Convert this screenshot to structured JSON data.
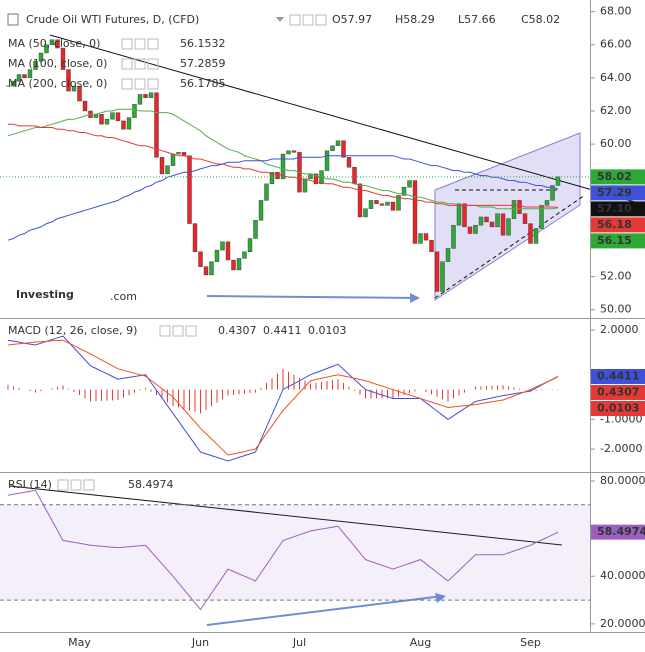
{
  "chart_data": [
    {
      "type": "candlestick",
      "title": "Crude Oil WTI Futures, D, (CFD)",
      "ohlc": [
        "O57.97",
        "H58.29",
        "L57.66",
        "C58.02"
      ],
      "watermark": {
        "brand": "Investing",
        "suffix": ".com"
      },
      "up_color": "#2ea836",
      "down_color": "#e8262a",
      "ylim": [
        49.5,
        68.7
      ],
      "yticks": [
        {
          "value": 50,
          "label": "50.00"
        },
        {
          "value": 52,
          "label": "52.00"
        },
        {
          "value": 54,
          "label": "54.00"
        },
        {
          "value": 56,
          "label": "56.00"
        },
        {
          "value": 58,
          "label": "58.00"
        },
        {
          "value": 60,
          "label": "60.00"
        },
        {
          "value": 62,
          "label": "62.00"
        },
        {
          "value": 64,
          "label": "64.00"
        },
        {
          "value": 66,
          "label": "66.00"
        },
        {
          "value": 68,
          "label": "68.00"
        }
      ],
      "categories": [
        null,
        null,
        null,
        null,
        null,
        null,
        null,
        null,
        null,
        null,
        null,
        null,
        null,
        "May",
        null,
        null,
        null,
        null,
        null,
        null,
        null,
        null,
        null,
        null,
        null,
        null,
        null,
        null,
        null,
        null,
        null,
        null,
        null,
        null,
        null,
        "Jun",
        null,
        null,
        null,
        null,
        null,
        null,
        null,
        null,
        null,
        null,
        null,
        null,
        null,
        null,
        null,
        null,
        null,
        "Jul",
        null,
        null,
        null,
        null,
        null,
        null,
        null,
        null,
        null,
        null,
        null,
        null,
        null,
        null,
        null,
        null,
        null,
        null,
        null,
        null,
        null,
        "Aug",
        null,
        null,
        null,
        null,
        null,
        null,
        null,
        null,
        null,
        null,
        null,
        null,
        null,
        null,
        null,
        null,
        null,
        null,
        null,
        "Sep",
        null,
        null,
        null,
        null,
        null
      ],
      "values": [
        63.5,
        63.8,
        64.2,
        64.0,
        64.5,
        65.0,
        65.5,
        66.0,
        66.3,
        65.8,
        64.5,
        63.2,
        63.5,
        62.6,
        62.0,
        61.6,
        61.8,
        61.2,
        61.5,
        61.9,
        61.4,
        60.9,
        61.6,
        62.4,
        63.0,
        62.8,
        63.1,
        59.2,
        58.2,
        58.7,
        59.4,
        59.5,
        59.3,
        55.2,
        53.5,
        52.6,
        52.1,
        52.9,
        53.6,
        54.1,
        53.0,
        52.4,
        53.1,
        53.5,
        54.3,
        55.4,
        56.6,
        57.6,
        58.3,
        57.9,
        59.4,
        59.6,
        59.5,
        57.1,
        57.9,
        58.2,
        57.6,
        58.4,
        59.6,
        59.9,
        60.2,
        59.2,
        58.6,
        57.6,
        55.6,
        56.1,
        56.6,
        56.4,
        56.3,
        56.5,
        56.0,
        56.9,
        57.4,
        57.8,
        54.0,
        54.6,
        54.2,
        53.5,
        51.1,
        52.9,
        53.7,
        55.1,
        56.4,
        55.0,
        54.6,
        55.1,
        55.6,
        55.3,
        55.0,
        55.8,
        54.5,
        55.5,
        56.6,
        55.8,
        55.2,
        54.0,
        54.9,
        56.3,
        56.6,
        57.5,
        58.02
      ],
      "series": [
        {
          "name": "MA (50, close, 0)",
          "color": "#4caf50",
          "last_value": 56.1532,
          "values": [
            60.5,
            60.6,
            60.7,
            60.8,
            60.9,
            61.0,
            61.0,
            61.1,
            61.2,
            61.3,
            61.4,
            61.5,
            61.5,
            61.6,
            61.7,
            61.8,
            61.8,
            61.9,
            62.0,
            62.0,
            62.1,
            62.1,
            62.1,
            62.1,
            62.0,
            62.0,
            62.0,
            61.9,
            61.9,
            61.9,
            61.8,
            61.6,
            61.4,
            61.2,
            61.0,
            60.8,
            60.5,
            60.3,
            60.1,
            59.9,
            59.7,
            59.6,
            59.5,
            59.3,
            59.2,
            59.1,
            59.0,
            58.8,
            58.7,
            58.6,
            58.5,
            58.4,
            58.4,
            58.3,
            58.2,
            58.2,
            58.1,
            58.0,
            57.9,
            57.9,
            57.8,
            57.7,
            57.7,
            57.6,
            57.5,
            57.5,
            57.4,
            57.3,
            57.2,
            57.2,
            57.1,
            57.0,
            57.0,
            56.9,
            56.8,
            56.8,
            56.7,
            56.6,
            56.5,
            56.5,
            56.4,
            56.4,
            56.3,
            56.3,
            56.3,
            56.3,
            56.2,
            56.2,
            56.2,
            56.1,
            56.1,
            56.1,
            56.1,
            56.1,
            56.1,
            56.1,
            56.1,
            56.1,
            56.1,
            56.1,
            56.15
          ]
        },
        {
          "name": "MA (100, close, 0)",
          "color": "#3f51d8",
          "last_value": 57.2859,
          "values": [
            54.2,
            54.3,
            54.5,
            54.6,
            54.8,
            54.9,
            55.0,
            55.2,
            55.3,
            55.5,
            55.6,
            55.7,
            55.8,
            55.9,
            56.0,
            56.1,
            56.2,
            56.3,
            56.4,
            56.5,
            56.6,
            56.8,
            56.9,
            57.1,
            57.2,
            57.4,
            57.5,
            57.7,
            57.8,
            58.0,
            58.1,
            58.2,
            58.3,
            58.3,
            58.4,
            58.5,
            58.6,
            58.7,
            58.7,
            58.8,
            58.9,
            58.9,
            58.9,
            59.0,
            59.0,
            59.0,
            59.0,
            59.0,
            59.1,
            59.1,
            59.1,
            59.1,
            59.1,
            59.2,
            59.2,
            59.2,
            59.2,
            59.2,
            59.3,
            59.3,
            59.3,
            59.3,
            59.3,
            59.3,
            59.3,
            59.3,
            59.3,
            59.3,
            59.3,
            59.3,
            59.3,
            59.2,
            59.1,
            59.1,
            59.0,
            58.9,
            58.8,
            58.7,
            58.7,
            58.6,
            58.5,
            58.4,
            58.4,
            58.3,
            58.3,
            58.2,
            58.1,
            58.1,
            58.0,
            58.0,
            57.9,
            57.8,
            57.8,
            57.7,
            57.7,
            57.6,
            57.5,
            57.5,
            57.4,
            57.4,
            57.29
          ]
        },
        {
          "name": "MA (200, close, 0)",
          "color": "#e53935",
          "last_value": 56.1785,
          "values": [
            61.2,
            61.2,
            61.1,
            61.1,
            61.1,
            61.1,
            61.0,
            61.0,
            61.0,
            60.9,
            60.9,
            60.8,
            60.8,
            60.7,
            60.7,
            60.6,
            60.5,
            60.5,
            60.4,
            60.4,
            60.3,
            60.2,
            60.1,
            60.0,
            59.9,
            59.9,
            59.8,
            59.7,
            59.6,
            59.5,
            59.4,
            59.3,
            59.3,
            59.2,
            59.1,
            59.1,
            59.0,
            58.9,
            58.8,
            58.8,
            58.7,
            58.6,
            58.6,
            58.5,
            58.5,
            58.4,
            58.3,
            58.3,
            58.2,
            58.2,
            58.1,
            58.0,
            58.0,
            57.9,
            57.9,
            57.8,
            57.7,
            57.7,
            57.6,
            57.6,
            57.5,
            57.4,
            57.4,
            57.3,
            57.2,
            57.2,
            57.1,
            57.0,
            56.9,
            56.9,
            56.8,
            56.8,
            56.7,
            56.7,
            56.6,
            56.6,
            56.5,
            56.5,
            56.4,
            56.4,
            56.3,
            56.3,
            56.3,
            56.3,
            56.3,
            56.3,
            56.3,
            56.3,
            56.3,
            56.3,
            56.3,
            56.3,
            56.3,
            56.3,
            56.2,
            56.2,
            56.2,
            56.2,
            56.2,
            56.2,
            56.18
          ]
        }
      ],
      "markers": [
        {
          "value": 58.02,
          "label": "58.02",
          "color": "#2ea836"
        },
        {
          "value": 57.29,
          "label": "57.29",
          "color": "#3f51d8"
        },
        {
          "value": 57.1,
          "label": "57.10",
          "color": "#111111"
        },
        {
          "value": 56.18,
          "label": "56.18",
          "color": "#e53935"
        },
        {
          "value": 56.15,
          "label": "56.15",
          "color": "#2ea836"
        }
      ]
    },
    {
      "type": "macd",
      "title": "MACD (12, 26, close, 9)",
      "ylim": [
        -2.77,
        2.34
      ],
      "yticks": [
        {
          "value": 2,
          "label": "2.0000"
        },
        {
          "value": -1,
          "label": "-1.0000"
        },
        {
          "value": -2,
          "label": "-2.0000"
        }
      ],
      "series": [
        {
          "color": "#e53935",
          "style": "histogram",
          "values": [
            0.16,
            0.11,
            0.06,
            0.0,
            -0.05,
            -0.1,
            -0.05,
            0.0,
            0.04,
            0.09,
            0.14,
            0.03,
            -0.08,
            -0.18,
            -0.29,
            -0.4,
            -0.39,
            -0.38,
            -0.37,
            -0.36,
            -0.35,
            -0.27,
            -0.19,
            -0.11,
            -0.03,
            0.05,
            -0.07,
            -0.19,
            -0.31,
            -0.43,
            -0.55,
            -0.6,
            -0.65,
            -0.7,
            -0.75,
            -0.8,
            -0.68,
            -0.56,
            -0.44,
            -0.32,
            -0.2,
            -0.18,
            -0.16,
            -0.14,
            -0.12,
            -0.1,
            0.06,
            0.22,
            0.38,
            0.54,
            0.7,
            0.6,
            0.5,
            0.4,
            0.3,
            0.2,
            0.23,
            0.26,
            0.29,
            0.32,
            0.35,
            0.22,
            0.09,
            -0.04,
            -0.17,
            -0.3,
            -0.3,
            -0.3,
            -0.3,
            -0.3,
            -0.3,
            -0.24,
            -0.18,
            -0.12,
            -0.06,
            0.0,
            -0.08,
            -0.16,
            -0.24,
            -0.32,
            -0.4,
            -0.3,
            -0.2,
            -0.1,
            0.0,
            0.1,
            0.11,
            0.12,
            0.13,
            0.14,
            0.15,
            0.11,
            0.07,
            0.03,
            -0.01,
            -0.05,
            -0.04,
            -0.02,
            -0.01,
            0.01,
            0.0103
          ]
        },
        {
          "color": "#3f51d8",
          "style": "line",
          "values": [
            1.66,
            1.63,
            1.6,
            1.56,
            1.53,
            1.5,
            1.56,
            1.62,
            1.68,
            1.74,
            1.8,
            1.6,
            1.4,
            1.2,
            1.0,
            0.8,
            0.71,
            0.62,
            0.53,
            0.44,
            0.35,
            0.38,
            0.41,
            0.44,
            0.47,
            0.5,
            0.24,
            -0.02,
            -0.28,
            -0.54,
            -0.8,
            -1.06,
            -1.32,
            -1.58,
            -1.84,
            -2.1,
            -2.16,
            -2.22,
            -2.28,
            -2.34,
            -2.4,
            -2.34,
            -2.28,
            -2.22,
            -2.16,
            -2.1,
            -1.68,
            -1.26,
            -0.84,
            -0.42,
            0.0,
            0.1,
            0.2,
            0.3,
            0.4,
            0.5,
            0.57,
            0.64,
            0.71,
            0.78,
            0.85,
            0.68,
            0.51,
            0.34,
            0.17,
            0.0,
            -0.06,
            -0.12,
            -0.18,
            -0.24,
            -0.3,
            -0.3,
            -0.3,
            -0.3,
            -0.3,
            -0.3,
            -0.44,
            -0.58,
            -0.72,
            -0.86,
            -1.0,
            -0.88,
            -0.76,
            -0.64,
            -0.52,
            -0.4,
            -0.36,
            -0.32,
            -0.28,
            -0.24,
            -0.2,
            -0.17,
            -0.14,
            -0.11,
            -0.08,
            -0.05,
            0.05,
            0.15,
            0.25,
            0.35,
            0.4411
          ]
        },
        {
          "color": "#f4511e",
          "style": "line",
          "values": [
            1.5,
            1.52,
            1.54,
            1.56,
            1.58,
            1.6,
            1.61,
            1.62,
            1.64,
            1.65,
            1.66,
            1.57,
            1.48,
            1.38,
            1.29,
            1.2,
            1.1,
            1.0,
            0.9,
            0.8,
            0.7,
            0.65,
            0.6,
            0.55,
            0.5,
            0.45,
            0.31,
            0.17,
            0.03,
            -0.11,
            -0.25,
            -0.46,
            -0.67,
            -0.88,
            -1.09,
            -1.3,
            -1.48,
            -1.66,
            -1.84,
            -2.02,
            -2.2,
            -2.16,
            -2.12,
            -2.08,
            -2.04,
            -2.0,
            -1.74,
            -1.48,
            -1.22,
            -0.96,
            -0.7,
            -0.5,
            -0.3,
            -0.1,
            0.1,
            0.3,
            0.34,
            0.38,
            0.42,
            0.46,
            0.5,
            0.46,
            0.42,
            0.38,
            0.34,
            0.3,
            0.24,
            0.18,
            0.12,
            0.06,
            0.0,
            -0.06,
            -0.12,
            -0.18,
            -0.24,
            -0.3,
            -0.36,
            -0.42,
            -0.48,
            -0.54,
            -0.6,
            -0.58,
            -0.56,
            -0.54,
            -0.52,
            -0.5,
            -0.47,
            -0.44,
            -0.41,
            -0.38,
            -0.35,
            -0.28,
            -0.21,
            -0.14,
            -0.07,
            0.0,
            0.09,
            0.17,
            0.26,
            0.34,
            0.4307
          ]
        }
      ],
      "markers": [
        {
          "value": 0.4307,
          "label": "0.4307",
          "color": "#e53935"
        },
        {
          "value": 0.4411,
          "label": "0.4411",
          "color": "#3f51d8"
        },
        {
          "value": 0.0103,
          "label": "0.0103",
          "color": "#e53935"
        }
      ]
    },
    {
      "type": "rsi",
      "title": "RSI (14)",
      "ylim": [
        16.6,
        82.9
      ],
      "yticks": [
        {
          "value": 80,
          "label": "80.0000"
        },
        {
          "value": 40,
          "label": "40.0000"
        },
        {
          "value": 20,
          "label": "20.0000"
        }
      ],
      "band": [
        30,
        70
      ],
      "series": [
        {
          "color": "#9c5fc0",
          "style": "line",
          "values": [
            74,
            74.4,
            74.8,
            75.2,
            75.6,
            76,
            71.8,
            67.6,
            63.4,
            59.2,
            55,
            54.6,
            54.2,
            53.8,
            53.4,
            53,
            52.8,
            52.6,
            52.4,
            52.2,
            52,
            52.2,
            52.4,
            52.6,
            52.8,
            53,
            50.4,
            47.8,
            45.2,
            42.6,
            40,
            37.2,
            34.4,
            31.6,
            28.8,
            26,
            29.4,
            32.8,
            36.2,
            39.6,
            43,
            42,
            41,
            40,
            39,
            38,
            41.4,
            44.8,
            48.2,
            51.6,
            55,
            55.8,
            56.6,
            57.4,
            58.2,
            59,
            59.4,
            59.8,
            60.2,
            60.6,
            61,
            58.2,
            55.4,
            52.6,
            49.8,
            47,
            46.2,
            45.4,
            44.6,
            43.8,
            43,
            43.8,
            44.6,
            45.4,
            46.2,
            47,
            45.2,
            43.4,
            41.6,
            39.8,
            38,
            40.2,
            42.4,
            44.6,
            46.8,
            49,
            49,
            49,
            49,
            49,
            49,
            49.8,
            50.6,
            51.4,
            52.2,
            53,
            54.1,
            55.2,
            56.3,
            57.4,
            58.4974
          ]
        }
      ],
      "markers": [
        {
          "value": 58.4974,
          "label": "58.4974",
          "color": "#9c5fc0"
        }
      ]
    }
  ]
}
